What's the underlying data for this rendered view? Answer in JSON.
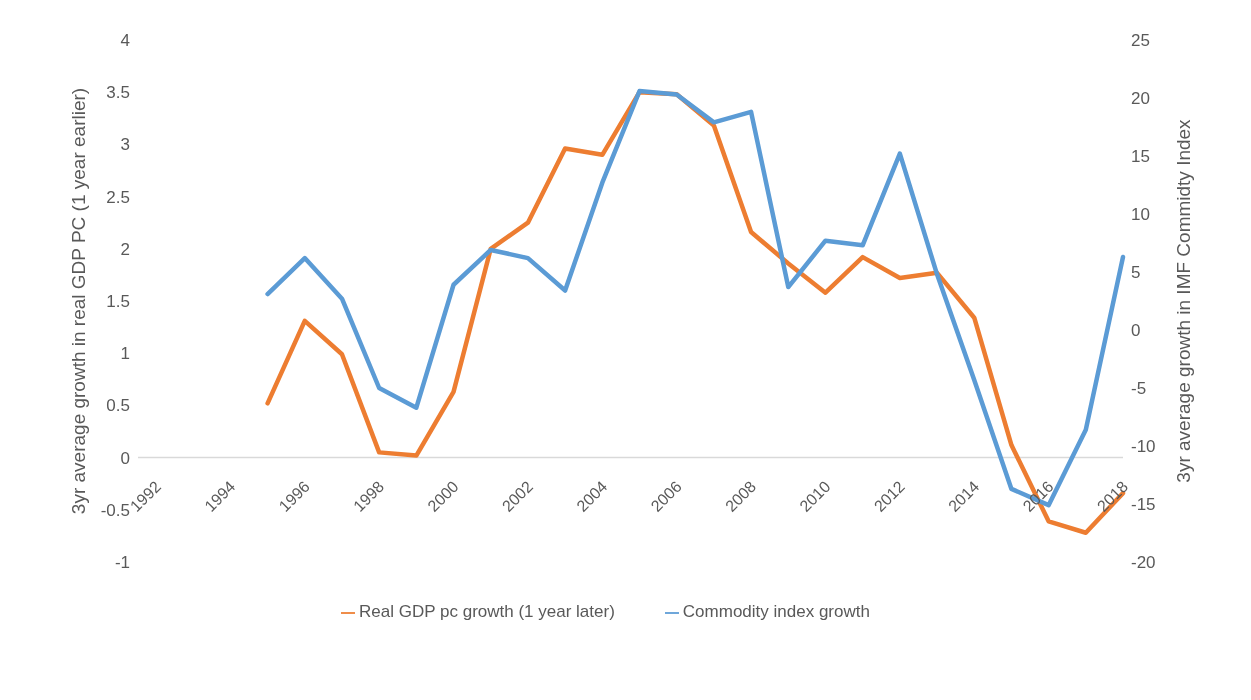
{
  "chart_data": {
    "type": "line",
    "ylabel": "3yr average growth in real GDP PC (1 year earlier)",
    "y2label": "3yr average growth in IMF Commidty Index",
    "categories": [
      "1992",
      null,
      "1994",
      null,
      "1996",
      null,
      "1998",
      null,
      "2000",
      null,
      "2002",
      null,
      "2004",
      null,
      "2006",
      null,
      "2008",
      null,
      "2010",
      null,
      "2012",
      null,
      "2014",
      null,
      "2016",
      null,
      "2018"
    ],
    "series": [
      {
        "name": "Real GDP pc growth (1 year later)",
        "color": "#ed7d31",
        "values": [
          null,
          null,
          null,
          0.52,
          1.31,
          0.99,
          0.05,
          0.02,
          0.63,
          2.0,
          2.25,
          2.96,
          2.9,
          3.5,
          3.48,
          3.18,
          2.16,
          1.86,
          1.58,
          1.92,
          1.72,
          1.77,
          1.34,
          0.12,
          -0.61,
          -0.72,
          -0.34
        ]
      },
      {
        "name": "Commodity index growth",
        "color": "#5b9bd5",
        "axis": "y2",
        "values": [
          null,
          null,
          null,
          3.1,
          6.2,
          2.7,
          -5.0,
          -6.7,
          3.9,
          6.9,
          6.2,
          3.4,
          12.7,
          20.6,
          20.3,
          17.9,
          18.8,
          3.7,
          7.7,
          7.3,
          15.2,
          4.8,
          -4.3,
          -13.7,
          -15.1,
          -8.6,
          6.3
        ]
      }
    ],
    "ylim": [
      -1,
      4
    ],
    "yticks": [
      -1,
      -0.5,
      0,
      0.5,
      1,
      1.5,
      2,
      2.5,
      3,
      3.5,
      4
    ],
    "y2lim": [
      -20,
      25
    ],
    "y2ticks": [
      -20,
      -15,
      -10,
      -5,
      0,
      5,
      10,
      15,
      20,
      25
    ],
    "legend": "bottom",
    "marker": "none",
    "line_style": "solid"
  }
}
